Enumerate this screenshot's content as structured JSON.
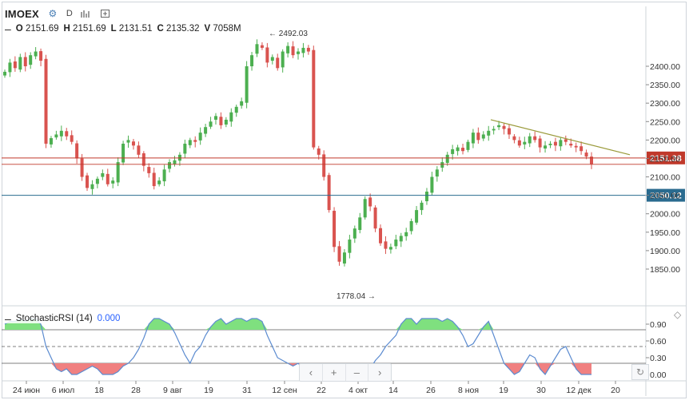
{
  "header": {
    "symbol": "IMOEX",
    "settings_icon": "gear-icon",
    "timeframe": "D",
    "bars_icon": "bars-chart-icon",
    "compare_icon": "compare-add-icon"
  },
  "ohlc": {
    "collapse_glyph": "–",
    "o_label": "O",
    "o_value": "2151.69",
    "h_label": "H",
    "h_value": "2151.69",
    "l_label": "L",
    "l_value": "2131.51",
    "c_label": "C",
    "c_value": "2135.32",
    "v_label": "V",
    "v_value": "7058M"
  },
  "stoch_header": {
    "collapse_glyph": "–",
    "name": "StochasticRSI (14)",
    "value": "0.000"
  },
  "nav": {
    "left": "‹",
    "zoom_in": "+",
    "zoom_out": "–",
    "right": "›"
  },
  "colors": {
    "up": "#4caf50",
    "down": "#d9534f",
    "trend": "#9a9a3a",
    "red_line": "#c0392b",
    "blue_line": "#2a6b8f",
    "rsi": "#5b8bd0",
    "overbought_fill": "#7fe07f",
    "oversold_fill": "#f08080"
  },
  "chart_data": [
    {
      "type": "candlestick",
      "title": "IMOEX",
      "y_axis_ticks": [
        "2400.00",
        "2350.00",
        "2300.00",
        "2250.00",
        "2200.00",
        "2150.00",
        "2100.00",
        "2050.00",
        "2000.00",
        "1950.00",
        "1900.00",
        "1850.00"
      ],
      "ylim": [
        1800,
        2470
      ],
      "x_axis_ticks": [
        "24 июн",
        "6 июл",
        "18",
        "28",
        "9 авг",
        "19",
        "31",
        "12 сен",
        "22",
        "4 окт",
        "14",
        "26",
        "8 ноя",
        "19",
        "30",
        "12 дек",
        "20"
      ],
      "annotations": {
        "high": "← 2492.03",
        "low": "1778.04 →"
      },
      "price_lines": [
        {
          "value": 2151.38,
          "label": "2151.38",
          "color": "red"
        },
        {
          "value": 2050.12,
          "label": "2050.12",
          "color": "blue"
        }
      ],
      "trendline": {
        "from_value": 2255,
        "to_value": 2160
      },
      "closes": [
        2385,
        2410,
        2395,
        2425,
        2400,
        2430,
        2440,
        2415,
        2190,
        2205,
        2215,
        2225,
        2210,
        2195,
        2150,
        2100,
        2070,
        2080,
        2095,
        2110,
        2080,
        2090,
        2140,
        2190,
        2200,
        2185,
        2160,
        2130,
        2110,
        2075,
        2090,
        2120,
        2140,
        2145,
        2160,
        2190,
        2200,
        2195,
        2220,
        2235,
        2250,
        2265,
        2240,
        2255,
        2275,
        2290,
        2305,
        2400,
        2430,
        2460,
        2450,
        2410,
        2425,
        2395,
        2440,
        2455,
        2430,
        2440,
        2450,
        2440,
        2180,
        2160,
        2100,
        2010,
        1910,
        1870,
        1895,
        1930,
        1960,
        1990,
        2040,
        2020,
        1960,
        1920,
        1905,
        1910,
        1930,
        1940,
        1950,
        1980,
        2010,
        2030,
        2060,
        2100,
        2120,
        2140,
        2160,
        2175,
        2180,
        2170,
        2195,
        2220,
        2200,
        2215,
        2225,
        2230,
        2240,
        2230,
        2215,
        2200,
        2185,
        2195,
        2210,
        2200,
        2180,
        2185,
        2190,
        2185,
        2200,
        2195,
        2185,
        2180,
        2170,
        2155,
        2135
      ]
    },
    {
      "type": "line",
      "title": "StochasticRSI (14)",
      "y_axis_ticks": [
        "0.90",
        "0.60",
        "0.30",
        "0.00"
      ],
      "ylim": [
        -0.05,
        1.0
      ],
      "levels": [
        0.8,
        0.5,
        0.2
      ],
      "values": [
        0.9,
        0.95,
        0.95,
        1.0,
        0.95,
        1.0,
        1.0,
        0.9,
        0.5,
        0.3,
        0.1,
        0.05,
        0.1,
        0.0,
        0.0,
        0.05,
        0.1,
        0.15,
        0.1,
        0.0,
        0.0,
        0.0,
        0.05,
        0.15,
        0.2,
        0.3,
        0.45,
        0.65,
        0.9,
        1.0,
        1.0,
        0.95,
        0.9,
        0.75,
        0.55,
        0.35,
        0.2,
        0.4,
        0.5,
        0.7,
        0.85,
        0.95,
        1.0,
        0.9,
        0.95,
        1.0,
        1.0,
        0.95,
        1.0,
        1.0,
        0.95,
        0.7,
        0.5,
        0.3,
        0.25,
        0.2,
        0.15,
        0.2,
        0.1,
        0.0,
        0.0,
        0.0,
        0.0,
        0.0,
        0.0,
        0.05,
        0.0,
        0.0,
        0.0,
        0.0,
        0.0,
        0.1,
        0.25,
        0.35,
        0.5,
        0.6,
        0.7,
        0.9,
        1.0,
        1.0,
        0.9,
        1.0,
        1.0,
        1.0,
        1.0,
        0.95,
        1.0,
        0.95,
        0.85,
        0.7,
        0.5,
        0.55,
        0.7,
        0.85,
        0.95,
        0.7,
        0.45,
        0.2,
        0.1,
        0.0,
        0.05,
        0.2,
        0.35,
        0.3,
        0.1,
        0.0,
        0.15,
        0.3,
        0.45,
        0.5,
        0.3,
        0.1,
        0.0,
        0.0,
        0.0
      ]
    }
  ]
}
